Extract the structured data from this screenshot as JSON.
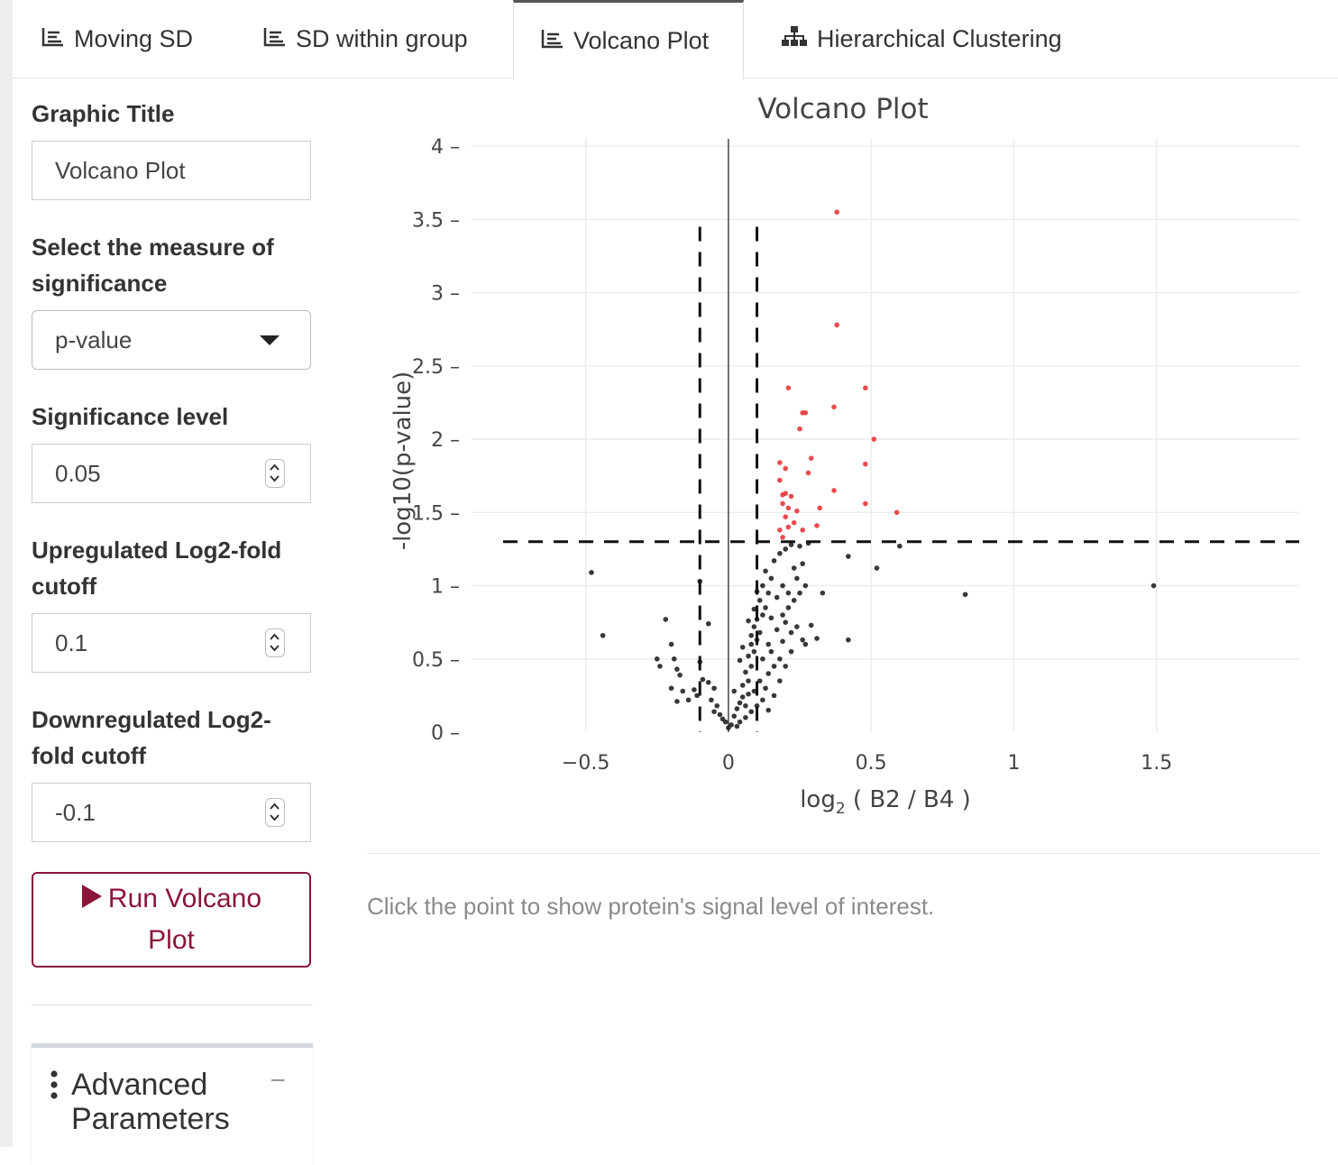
{
  "tabs": [
    {
      "label": "Moving SD",
      "icon": "list-icon",
      "active": false
    },
    {
      "label": "SD within group",
      "icon": "list-icon",
      "active": false
    },
    {
      "label": "Volcano Plot",
      "icon": "list-icon",
      "active": true
    },
    {
      "label": "Hierarchical Clustering",
      "icon": "sitemap-icon",
      "active": false
    }
  ],
  "sidebar": {
    "graphic_title_label": "Graphic Title",
    "graphic_title_value": "Volcano Plot",
    "measure_label": "Select the measure of significance",
    "measure_value": "p-value",
    "significance_label": "Significance level",
    "significance_value": "0.05",
    "up_label": "Upregulated Log2-fold cutoff",
    "up_value": "0.1",
    "down_label": "Downregulated Log2-fold cutoff",
    "down_value": "-0.1",
    "run_label": "Run Volcano Plot",
    "advanced_label": "Advanced Parameters"
  },
  "main": {
    "hint": "Click the point to show protein's signal level of interest."
  },
  "colors": {
    "accent": "#8b1538",
    "significant": "#e8383d",
    "nonsignificant": "#222222"
  },
  "chart_data": {
    "type": "scatter",
    "title": "Volcano Plot",
    "xlabel_main": "log",
    "xlabel_sub": "2",
    "xlabel_rest": " ( B2 / B4 )",
    "ylabel": "-log10(p-value)",
    "xlim": [
      -0.9,
      2.0
    ],
    "ylim": [
      0,
      4.05
    ],
    "xticks": [
      -0.5,
      0,
      0.5,
      1,
      1.5
    ],
    "xtick_labels": [
      "−0.5",
      "0",
      "0.5",
      "1",
      "1.5"
    ],
    "yticks": [
      0,
      0.5,
      1,
      1.5,
      2,
      2.5,
      3,
      3.5,
      4
    ],
    "ytick_labels": [
      "0",
      "0.5",
      "1",
      "1.5",
      "2",
      "2.5",
      "3",
      "3.5",
      "4"
    ],
    "grid": true,
    "fold_cutoffs": [
      -0.1,
      0.1
    ],
    "significance_line": 1.3,
    "series": [
      {
        "role": "significant",
        "points": [
          [
            0.38,
            3.55
          ],
          [
            0.38,
            2.78
          ],
          [
            0.21,
            2.35
          ],
          [
            0.48,
            2.35
          ],
          [
            0.26,
            2.18
          ],
          [
            0.27,
            2.18
          ],
          [
            0.37,
            2.22
          ],
          [
            0.51,
            2.0
          ],
          [
            0.25,
            2.07
          ],
          [
            0.29,
            1.87
          ],
          [
            0.48,
            1.83
          ],
          [
            0.18,
            1.84
          ],
          [
            0.28,
            1.77
          ],
          [
            0.2,
            1.8
          ],
          [
            0.18,
            1.72
          ],
          [
            0.37,
            1.65
          ],
          [
            0.19,
            1.62
          ],
          [
            0.2,
            1.63
          ],
          [
            0.22,
            1.61
          ],
          [
            0.19,
            1.56
          ],
          [
            0.48,
            1.56
          ],
          [
            0.21,
            1.53
          ],
          [
            0.32,
            1.53
          ],
          [
            0.24,
            1.51
          ],
          [
            0.59,
            1.5
          ],
          [
            0.2,
            1.47
          ],
          [
            0.23,
            1.43
          ],
          [
            0.18,
            1.38
          ],
          [
            0.21,
            1.4
          ],
          [
            0.26,
            1.38
          ],
          [
            0.31,
            1.41
          ],
          [
            0.19,
            1.33
          ]
        ]
      },
      {
        "role": "nonsignificant",
        "points": [
          [
            -0.48,
            1.09
          ],
          [
            -0.44,
            0.66
          ],
          [
            -0.22,
            0.77
          ],
          [
            -0.25,
            0.5
          ],
          [
            -0.2,
            0.6
          ],
          [
            -0.19,
            0.5
          ],
          [
            -0.24,
            0.45
          ],
          [
            -0.18,
            0.43
          ],
          [
            -0.17,
            0.39
          ],
          [
            -0.2,
            0.3
          ],
          [
            -0.18,
            0.21
          ],
          [
            -0.16,
            0.28
          ],
          [
            -0.14,
            0.22
          ],
          [
            -0.12,
            0.29
          ],
          [
            -0.09,
            0.36
          ],
          [
            -0.07,
            0.34
          ],
          [
            -0.05,
            0.3
          ],
          [
            -0.06,
            0.22
          ],
          [
            -0.04,
            0.18
          ],
          [
            -0.05,
            0.14
          ],
          [
            -0.03,
            0.12
          ],
          [
            -0.02,
            0.09
          ],
          [
            -0.01,
            0.07
          ],
          [
            0.0,
            0.03
          ],
          [
            0.01,
            0.05
          ],
          [
            0.02,
            0.11
          ],
          [
            0.03,
            0.16
          ],
          [
            0.04,
            0.2
          ],
          [
            0.05,
            0.24
          ],
          [
            0.02,
            0.28
          ],
          [
            0.05,
            0.32
          ],
          [
            0.07,
            0.35
          ],
          [
            0.06,
            0.41
          ],
          [
            0.08,
            0.45
          ],
          [
            0.04,
            0.49
          ],
          [
            0.07,
            0.52
          ],
          [
            0.09,
            0.55
          ],
          [
            0.08,
            0.6
          ],
          [
            0.1,
            0.63
          ],
          [
            0.11,
            0.68
          ],
          [
            0.09,
            0.72
          ],
          [
            0.1,
            0.77
          ],
          [
            0.12,
            0.8
          ],
          [
            0.13,
            0.85
          ],
          [
            0.11,
            0.9
          ],
          [
            0.14,
            0.95
          ],
          [
            0.12,
            1.0
          ],
          [
            0.15,
            1.05
          ],
          [
            0.13,
            1.1
          ],
          [
            0.16,
            1.17
          ],
          [
            0.18,
            1.22
          ],
          [
            0.2,
            1.25
          ],
          [
            0.22,
            1.28
          ],
          [
            0.25,
            1.27
          ],
          [
            0.28,
            1.29
          ],
          [
            0.14,
            0.4
          ],
          [
            0.16,
            0.45
          ],
          [
            0.18,
            0.5
          ],
          [
            0.15,
            0.55
          ],
          [
            0.19,
            0.62
          ],
          [
            0.17,
            0.7
          ],
          [
            0.2,
            0.75
          ],
          [
            0.22,
            0.68
          ],
          [
            0.24,
            0.72
          ],
          [
            0.26,
            0.63
          ],
          [
            0.21,
            0.85
          ],
          [
            0.23,
            0.9
          ],
          [
            0.25,
            0.95
          ],
          [
            0.27,
            1.0
          ],
          [
            0.24,
            1.05
          ],
          [
            0.26,
            1.15
          ],
          [
            0.19,
            1.0
          ],
          [
            0.17,
            0.92
          ],
          [
            0.15,
            0.78
          ],
          [
            0.13,
            0.3
          ],
          [
            0.12,
            0.22
          ],
          [
            0.1,
            0.18
          ],
          [
            0.08,
            0.14
          ],
          [
            0.06,
            0.1
          ],
          [
            0.04,
            0.07
          ],
          [
            0.03,
            0.04
          ],
          [
            0.09,
            0.28
          ],
          [
            0.11,
            0.35
          ],
          [
            0.14,
            0.6
          ],
          [
            0.18,
            0.35
          ],
          [
            0.2,
            0.45
          ],
          [
            0.22,
            0.55
          ],
          [
            0.16,
            0.25
          ],
          [
            0.19,
            0.8
          ],
          [
            0.21,
            0.95
          ],
          [
            0.23,
            1.12
          ],
          [
            0.29,
            0.73
          ],
          [
            0.31,
            0.64
          ],
          [
            0.27,
            0.6
          ],
          [
            0.33,
            0.95
          ],
          [
            0.42,
            0.63
          ],
          [
            0.42,
            1.2
          ],
          [
            0.52,
            1.12
          ],
          [
            0.6,
            1.27
          ],
          [
            0.83,
            0.94
          ],
          [
            1.49,
            1.0
          ],
          [
            -0.1,
            1.03
          ],
          [
            -0.07,
            0.74
          ],
          [
            -0.1,
            0.48
          ],
          [
            -0.11,
            0.25
          ],
          [
            0.05,
            0.58
          ],
          [
            0.07,
            0.76
          ],
          [
            0.09,
            0.84
          ],
          [
            0.1,
            0.96
          ],
          [
            0.08,
            0.66
          ],
          [
            0.12,
            0.5
          ],
          [
            0.14,
            0.15
          ],
          [
            0.06,
            0.18
          ],
          [
            0.07,
            0.26
          ]
        ]
      }
    ]
  }
}
